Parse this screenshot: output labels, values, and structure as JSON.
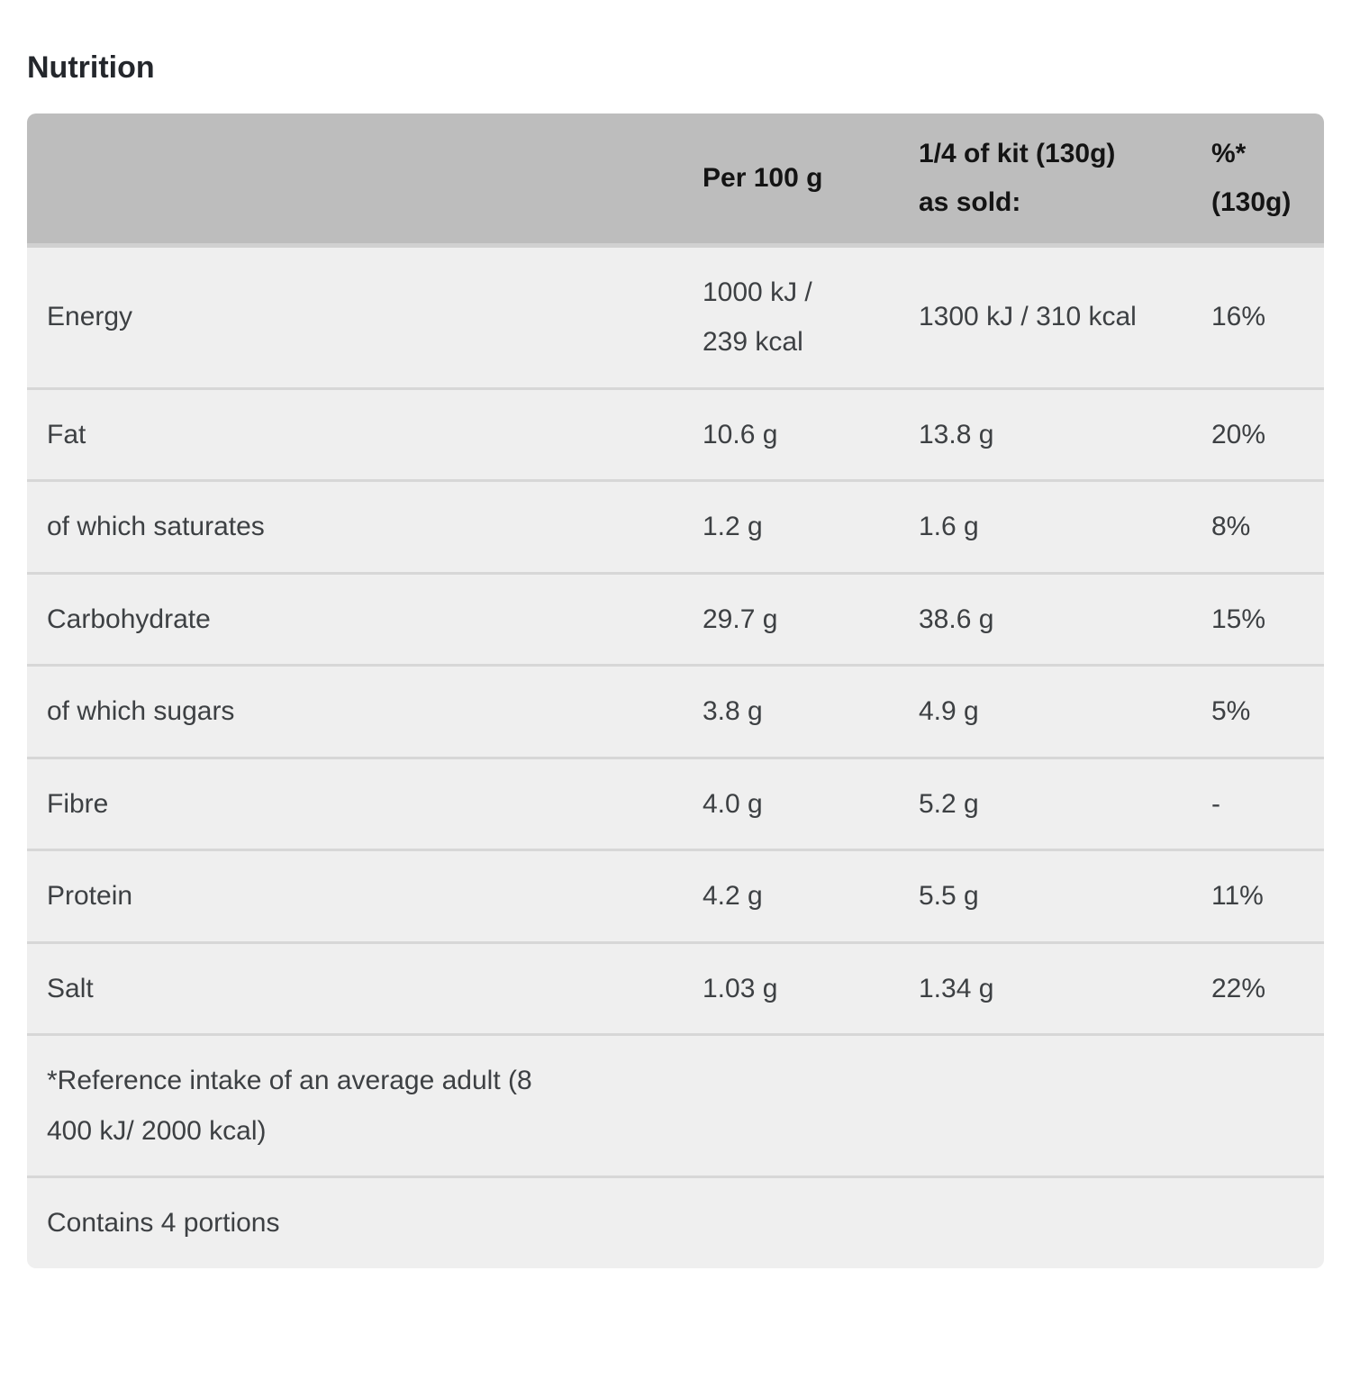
{
  "page": {
    "title": "Nutrition"
  },
  "colors": {
    "header_bg": "#bdbdbd",
    "row_bg": "#efefef",
    "divider": "#d7d7d7",
    "header_text": "#141414",
    "body_text": "#3d4043",
    "title_text": "#24272c"
  },
  "table": {
    "header": {
      "nutrient": "",
      "per_100g": "Per 100 g",
      "per_portion": "1/4 of kit (130g)\nas sold:",
      "reference_intake": "%*\n(130g)"
    },
    "rows": [
      {
        "label": "Energy",
        "per100": "1000 kJ /\n239 kcal",
        "perPortion": "1300 kJ / 310 kcal",
        "ri": "16%"
      },
      {
        "label": "Fat",
        "per100": "10.6 g",
        "perPortion": "13.8 g",
        "ri": "20%"
      },
      {
        "label": "of which saturates",
        "per100": "1.2 g",
        "perPortion": "1.6 g",
        "ri": "8%"
      },
      {
        "label": "Carbohydrate",
        "per100": "29.7 g",
        "perPortion": "38.6 g",
        "ri": "15%"
      },
      {
        "label": "of which sugars",
        "per100": "3.8 g",
        "perPortion": "4.9 g",
        "ri": "5%"
      },
      {
        "label": "Fibre",
        "per100": "4.0 g",
        "perPortion": "5.2 g",
        "ri": "-"
      },
      {
        "label": "Protein",
        "per100": "4.2 g",
        "perPortion": "5.5 g",
        "ri": "11%"
      },
      {
        "label": "Salt",
        "per100": "1.03 g",
        "perPortion": "1.34 g",
        "ri": "22%"
      }
    ],
    "footnotes": [
      "*Reference intake of an average adult (8\n400 kJ/ 2000 kcal)",
      "Contains 4 portions"
    ]
  }
}
